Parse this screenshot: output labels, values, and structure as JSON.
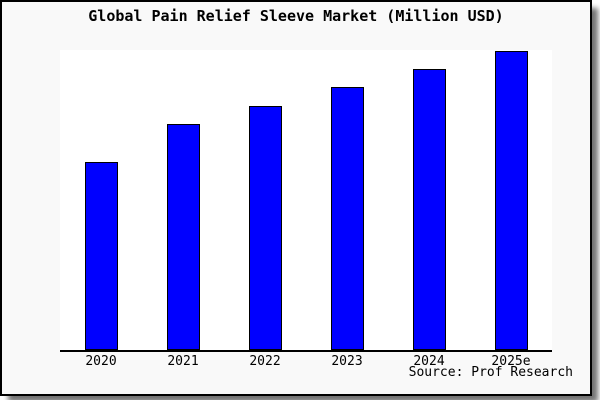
{
  "page": {
    "outer_background": "#ffffff",
    "frame_background": "#f9f9f9",
    "frame_border_color": "#000000",
    "plot_background": "#ffffff",
    "axis_color": "#000000",
    "text_color": "#000000"
  },
  "chart": {
    "title": "Global Pain Relief Sleeve Market (Million USD)",
    "source": "Source: Prof Research"
  },
  "chart_data": {
    "type": "bar",
    "title": "Global Pain Relief Sleeve Market (Million USD)",
    "categories": [
      "2020",
      "2021",
      "2022",
      "2023",
      "2024",
      "2025e"
    ],
    "series": [
      {
        "name": "Global Pain Relief Sleeve Market (Million USD)",
        "values_pct_of_plot_height": [
          62.7,
          75.3,
          81.3,
          87.6,
          93.7,
          99.7
        ]
      }
    ],
    "xlabel": "",
    "ylabel": "",
    "y_axis_visible": false,
    "x_axis_line": true,
    "gridlines": false,
    "legend_visible": false,
    "bar_color": "#0000ff",
    "bar_border_color": "#000000",
    "source_note": "Source: Prof Research"
  }
}
